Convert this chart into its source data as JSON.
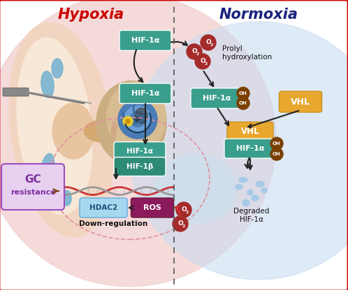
{
  "title_hypoxia": "Hypoxia",
  "title_normoxia": "Normoxia",
  "title_hypoxia_color": "#CC0000",
  "title_normoxia_color": "#1A237E",
  "bg_outer": "#FFFFFF",
  "bg_hypoxia": "#F2CECE",
  "bg_normoxia": "#C8DCF0",
  "bg_cell_pink": "#F5D5D8",
  "bg_cell_blue": "#C8E0F0",
  "hif_box_color": "#3A9E8C",
  "hif_box_color2": "#2E8B75",
  "hif_text_color": "#FFFFFF",
  "vhl_box_color": "#E8A830",
  "vhl_text_color": "#FFFFFF",
  "gc_box_facecolor": "#E8D0F0",
  "gc_text_color": "#7B2FA0",
  "gc_border_color": "#9B4FBF",
  "hdac2_box_color": "#A8D8F0",
  "hdac2_text_color": "#1A5276",
  "hdac2_border_color": "#5DADE2",
  "ros_box_color": "#8B1A5C",
  "ros_text_color": "#FFFFFF",
  "oh_circle_color": "#7B3F00",
  "o2_circle_color": "#A52A2A",
  "dashed_line_color": "#555555",
  "border_color": "#CC0000",
  "arrow_color": "#222222",
  "brown_arrow_color": "#7B3F00",
  "red_arrow_color": "#CC3333",
  "down_reg_text": "Down-regulation",
  "degraded_text": "Degraded\nHIF-1α",
  "prolyl_text": "Prolyl\nhydroxylation",
  "ear_skin1": "#F2D5C0",
  "ear_skin2": "#E8C4A0",
  "ear_bone": "#D4A870",
  "ear_canal_dark": "#B8895A",
  "cochlea_blue": "#4A7DB5",
  "cochlea_light": "#6A9FD8",
  "cochlea_dark": "#2A5A8A",
  "semicarc_color": "#3A6A9A",
  "stapes_color": "#E8C830",
  "blue_fluid": "#6AAED0",
  "needle_color": "#777777",
  "dna_red": "#CC3333",
  "dna_gray": "#999999",
  "particle_color": "#A0C8E8"
}
